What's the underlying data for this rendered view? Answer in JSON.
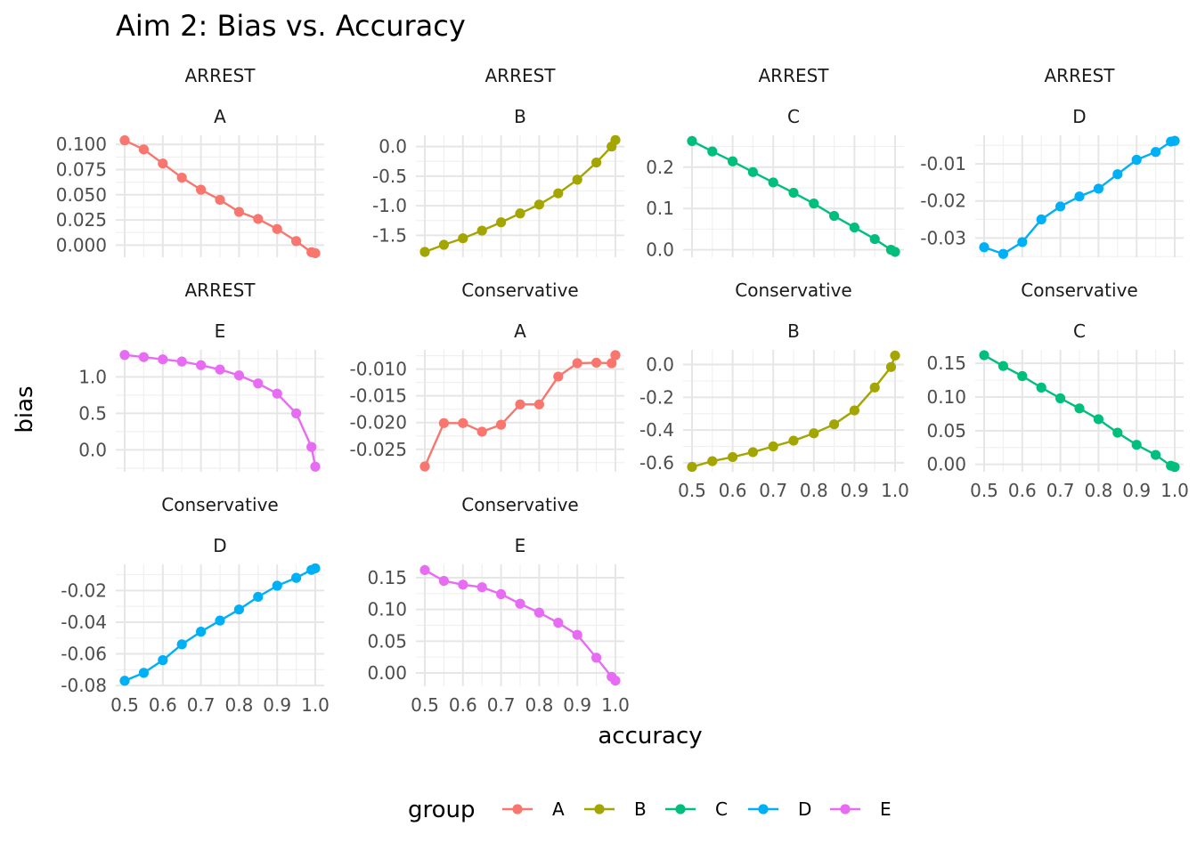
{
  "chart_data": {
    "type": "line",
    "title": "Aim 2: Bias vs. Accuracy",
    "xlabel": "accuracy",
    "ylabel": "bias",
    "legend": {
      "title": "group",
      "position": "bottom",
      "entries": [
        "A",
        "B",
        "C",
        "D",
        "E"
      ]
    },
    "colors": {
      "A": "#F8766D",
      "B": "#A3A500",
      "C": "#00BF7D",
      "D": "#00B0F6",
      "E": "#E76BF3"
    },
    "grid": true,
    "x_ticks": [
      "0.5",
      "0.6",
      "0.7",
      "0.8",
      "0.9",
      "1.0"
    ],
    "x_tick_values": [
      0.5,
      0.6,
      0.7,
      0.8,
      0.9,
      1.0
    ],
    "xlim": [
      0.5,
      1.0
    ],
    "accuracy": [
      0.5,
      0.55,
      0.6,
      0.65,
      0.7,
      0.75,
      0.8,
      0.85,
      0.9,
      0.95,
      0.99,
      1.0
    ],
    "panels": [
      {
        "strip_top": "ARREST",
        "strip_bottom": "A",
        "group": "A",
        "show_x": false,
        "y_ticks": [
          "0.100",
          "0.075",
          "0.050",
          "0.025",
          "0.000"
        ],
        "y_tick_values": [
          0.1,
          0.075,
          0.05,
          0.025,
          0.0
        ],
        "ylim": [
          -0.012,
          0.109
        ],
        "values": [
          0.104,
          0.095,
          0.081,
          0.067,
          0.055,
          0.045,
          0.033,
          0.026,
          0.016,
          0.004,
          -0.007,
          -0.008
        ]
      },
      {
        "strip_top": "ARREST",
        "strip_bottom": "B",
        "group": "B",
        "show_x": false,
        "y_ticks": [
          "0.0",
          "-0.5",
          "-1.0",
          "-1.5"
        ],
        "y_tick_values": [
          0.0,
          -0.5,
          -1.0,
          -1.5
        ],
        "ylim": [
          -1.87,
          0.19
        ],
        "values": [
          -1.78,
          -1.66,
          -1.55,
          -1.42,
          -1.28,
          -1.13,
          -0.98,
          -0.79,
          -0.56,
          -0.27,
          0.0,
          0.11
        ]
      },
      {
        "strip_top": "ARREST",
        "strip_bottom": "C",
        "group": "C",
        "show_x": false,
        "y_ticks": [
          "0.2",
          "0.1",
          "0.0"
        ],
        "y_tick_values": [
          0.2,
          0.1,
          0.0
        ],
        "ylim": [
          -0.018,
          0.277
        ],
        "values": [
          0.263,
          0.238,
          0.214,
          0.188,
          0.163,
          0.138,
          0.112,
          0.082,
          0.054,
          0.026,
          0.0,
          -0.005
        ]
      },
      {
        "strip_top": "ARREST",
        "strip_bottom": "D",
        "group": "D",
        "show_x": false,
        "y_ticks": [
          "-0.01",
          "-0.02",
          "-0.03"
        ],
        "y_tick_values": [
          -0.01,
          -0.02,
          -0.03
        ],
        "ylim": [
          -0.0352,
          -0.0023
        ],
        "values": [
          -0.0325,
          -0.0343,
          -0.0311,
          -0.025,
          -0.0215,
          -0.0188,
          -0.0167,
          -0.0128,
          -0.0089,
          -0.0068,
          -0.004,
          -0.0038
        ]
      },
      {
        "strip_top": "ARREST",
        "strip_bottom": "E",
        "group": "E",
        "show_x": false,
        "y_ticks": [
          "1.0",
          "0.5",
          "0.0"
        ],
        "y_tick_values": [
          1.0,
          0.5,
          0.0
        ],
        "ylim": [
          -0.3,
          1.37
        ],
        "values": [
          1.3,
          1.27,
          1.24,
          1.21,
          1.16,
          1.1,
          1.02,
          0.91,
          0.77,
          0.5,
          0.04,
          -0.23
        ]
      },
      {
        "strip_top": "Conservative",
        "strip_bottom": "A",
        "group": "A",
        "show_x": false,
        "y_ticks": [
          "-0.010",
          "-0.015",
          "-0.020",
          "-0.025"
        ],
        "y_tick_values": [
          -0.01,
          -0.015,
          -0.02,
          -0.025
        ],
        "ylim": [
          -0.0292,
          -0.0064
        ],
        "values": [
          -0.0282,
          -0.0201,
          -0.0201,
          -0.0217,
          -0.0204,
          -0.0166,
          -0.0166,
          -0.0114,
          -0.0089,
          -0.0088,
          -0.0089,
          -0.0074
        ]
      },
      {
        "strip_top": "Conservative",
        "strip_bottom": "B",
        "group": "B",
        "show_x": true,
        "y_ticks": [
          "0.0",
          "-0.2",
          "-0.4",
          "-0.6"
        ],
        "y_tick_values": [
          0.0,
          -0.2,
          -0.4,
          -0.6
        ],
        "ylim": [
          -0.655,
          0.09
        ],
        "values": [
          -0.625,
          -0.59,
          -0.565,
          -0.535,
          -0.5,
          -0.465,
          -0.42,
          -0.365,
          -0.28,
          -0.14,
          -0.015,
          0.055
        ]
      },
      {
        "strip_top": "Conservative",
        "strip_bottom": "C",
        "group": "C",
        "show_x": true,
        "y_ticks": [
          "0.15",
          "0.10",
          "0.05",
          "0.00"
        ],
        "y_tick_values": [
          0.15,
          0.1,
          0.05,
          0.0
        ],
        "ylim": [
          -0.011,
          0.17
        ],
        "values": [
          0.162,
          0.146,
          0.131,
          0.114,
          0.098,
          0.083,
          0.067,
          0.047,
          0.029,
          0.014,
          -0.002,
          -0.004
        ]
      },
      {
        "strip_top": "Conservative",
        "strip_bottom": "D",
        "group": "D",
        "show_x": true,
        "y_ticks": [
          "-0.02",
          "-0.04",
          "-0.06",
          "-0.08"
        ],
        "y_tick_values": [
          -0.02,
          -0.04,
          -0.06,
          -0.08
        ],
        "ylim": [
          -0.0805,
          -0.0035
        ],
        "values": [
          -0.077,
          -0.072,
          -0.064,
          -0.054,
          -0.046,
          -0.039,
          -0.032,
          -0.024,
          -0.017,
          -0.012,
          -0.007,
          -0.006
        ]
      },
      {
        "strip_top": "Conservative",
        "strip_bottom": "E",
        "group": "E",
        "show_x": true,
        "y_ticks": [
          "0.15",
          "0.10",
          "0.05",
          "0.00"
        ],
        "y_tick_values": [
          0.15,
          0.1,
          0.05,
          0.0
        ],
        "ylim": [
          -0.021,
          0.171
        ],
        "values": [
          0.162,
          0.145,
          0.139,
          0.135,
          0.124,
          0.109,
          0.095,
          0.079,
          0.06,
          0.024,
          -0.006,
          -0.012
        ]
      }
    ]
  }
}
